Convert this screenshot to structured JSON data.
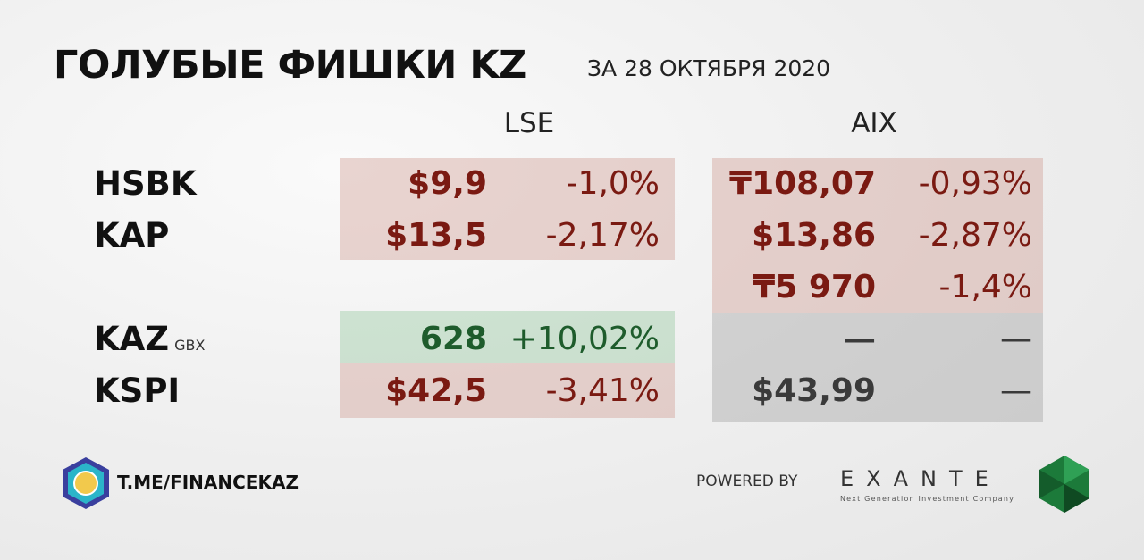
{
  "header": {
    "title": "ГОЛУБЫЕ ФИШКИ KZ",
    "subtitle": "ЗА 28 ОКТЯБРЯ 2020"
  },
  "table": {
    "columns": [
      "LSE",
      "AIX"
    ],
    "rows": [
      {
        "ticker": "HSBK",
        "lse": [
          "$9,9",
          "-1,0%"
        ],
        "aix": [
          "₸108,07",
          "-0,93%"
        ]
      },
      {
        "ticker": "KAP",
        "lse": [
          "$13,5",
          "-2,17%"
        ],
        "aix": [
          "$13,86",
          "-2,87%"
        ]
      },
      {
        "aix": [
          "₸5 970",
          "-1,4%"
        ]
      },
      {
        "ticker": "KAZ",
        "unit": "GBX",
        "lse": [
          "628",
          "+10,02%"
        ],
        "aix": [
          "—",
          "—"
        ]
      },
      {
        "ticker": "KSPI",
        "lse": [
          "$42,5",
          "-3,41%"
        ],
        "aix": [
          "$43,99",
          "—"
        ]
      }
    ]
  },
  "footer": {
    "channel": "T.ME/FINANCEKAZ",
    "powered": "POWERED BY",
    "brand": "EXANTE",
    "tagline": "Next Generation Investment Company"
  }
}
